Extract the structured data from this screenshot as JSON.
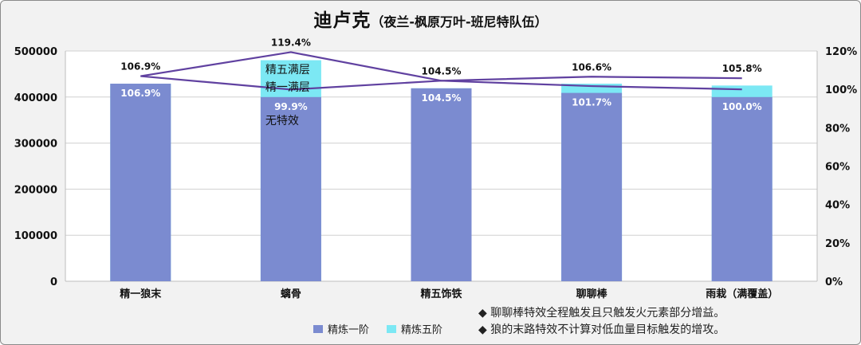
{
  "chart_data": {
    "type": "bar",
    "title": "迪卢克",
    "subtitle": "（夜兰-枫原万叶-班尼特队伍）",
    "categories": [
      "精一狼末",
      "螭骨",
      "精五饰铁",
      "聊聊棒",
      "雨栽（满覆盖）"
    ],
    "series": [
      {
        "name": "精炼一阶",
        "values": [
          429000,
          400000,
          419000,
          409000,
          400000
        ],
        "color": "#7b8bd0"
      },
      {
        "name": "精炼五阶",
        "values": [
          429000,
          480000,
          419000,
          429000,
          425000
        ],
        "color": "#7ce8f4"
      }
    ],
    "lines": [
      {
        "name": "精炼一阶",
        "values": [
          106.9,
          99.9,
          104.5,
          101.7,
          100.0
        ],
        "color": "#6041a0"
      },
      {
        "name": "精炼五阶",
        "values": [
          106.9,
          119.4,
          104.5,
          106.6,
          105.8
        ],
        "color": "#6041a0"
      }
    ],
    "bar_labels_inside": [
      "106.9%",
      "99.9%",
      "104.5%",
      "101.7%",
      "100.0%"
    ],
    "bar_labels_top": [
      "106.9%",
      "119.4%",
      "104.5%",
      "106.6%",
      "105.8%"
    ],
    "annotations": [
      "精五满层",
      "精一满层",
      "无特效"
    ],
    "y_left": {
      "min": 0,
      "max": 500000,
      "ticks": [
        "0",
        "100000",
        "200000",
        "300000",
        "400000",
        "500000"
      ]
    },
    "y_right": {
      "min": 0,
      "max": 120,
      "ticks": [
        "0%",
        "20%",
        "40%",
        "60%",
        "80%",
        "100%",
        "120%"
      ]
    },
    "grid": true,
    "legend_position": "bottom"
  },
  "legend": [
    {
      "label": "精炼一阶",
      "color": "#7b8bd0"
    },
    {
      "label": "精炼五阶",
      "color": "#7ce8f4"
    }
  ],
  "notes": [
    "◆ 聊聊棒特效全程触发且只触发火元素部分增益。",
    "◆ 狼的末路特效不计算对低血量目标触发的增攻。"
  ]
}
